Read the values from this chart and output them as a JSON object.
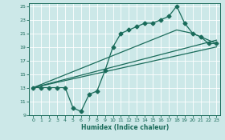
{
  "xlabel": "Humidex (Indice chaleur)",
  "bg_color": "#cce8e8",
  "line_color": "#1a6b5a",
  "grid_color": "#ffffff",
  "xlim": [
    -0.5,
    23.5
  ],
  "ylim": [
    9,
    25.5
  ],
  "xticks": [
    0,
    1,
    2,
    3,
    4,
    5,
    6,
    7,
    8,
    9,
    10,
    11,
    12,
    13,
    14,
    15,
    16,
    17,
    18,
    19,
    20,
    21,
    22,
    23
  ],
  "yticks": [
    9,
    11,
    13,
    15,
    17,
    19,
    21,
    23,
    25
  ],
  "line1_x": [
    0,
    1,
    2,
    3,
    4,
    5,
    6,
    7,
    8,
    9,
    10,
    11,
    12,
    13,
    14,
    15,
    16,
    17,
    18,
    19,
    20,
    21,
    22,
    23
  ],
  "line1_y": [
    13,
    13,
    13,
    13,
    13,
    10,
    9.5,
    12,
    12.5,
    15.5,
    19,
    21,
    21.5,
    22,
    22.5,
    22.5,
    23,
    23.5,
    25,
    22.5,
    21,
    20.5,
    19.5,
    19.5
  ],
  "line2_x": [
    0,
    18,
    20,
    23
  ],
  "line2_y": [
    13,
    21.5,
    21,
    19.5
  ],
  "line3_x": [
    0,
    23
  ],
  "line3_y": [
    13,
    20
  ],
  "line4_x": [
    0,
    23
  ],
  "line4_y": [
    13,
    19.0
  ],
  "markersize": 2.5,
  "linewidth": 0.9
}
